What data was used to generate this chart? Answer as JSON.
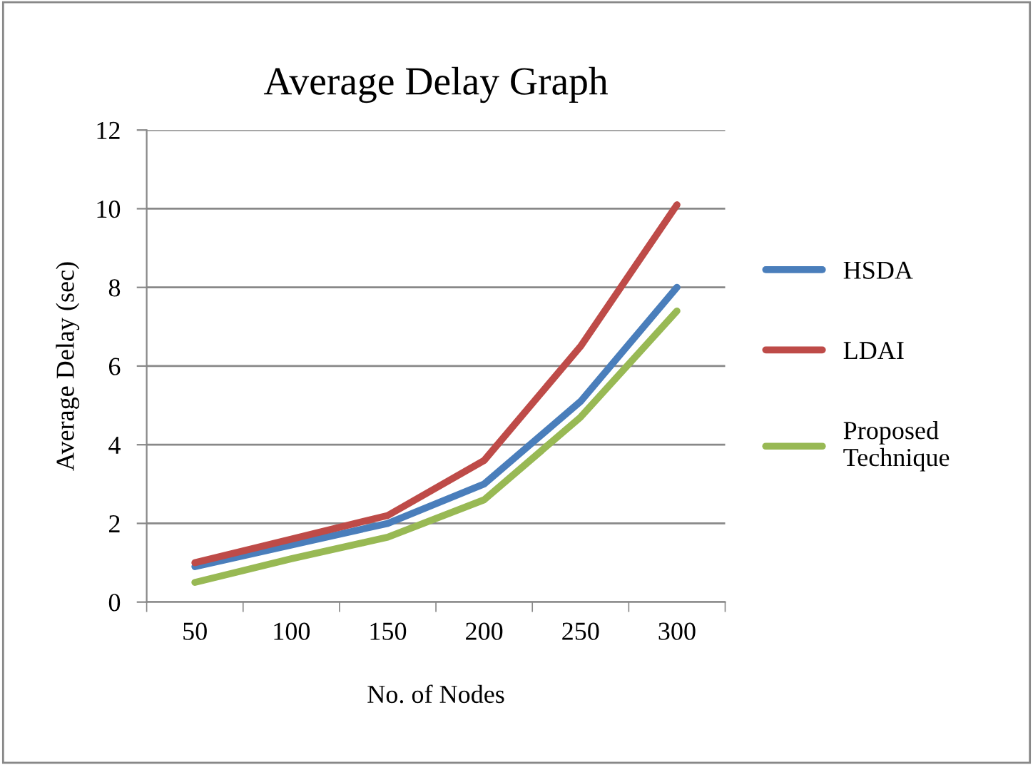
{
  "chart_data": {
    "type": "line",
    "title": "Average Delay Graph",
    "xlabel": "No. of Nodes",
    "ylabel": "Average Delay (sec)",
    "categories": [
      "50",
      "100",
      "150",
      "200",
      "250",
      "300"
    ],
    "series": [
      {
        "name": "HSDA",
        "color": "#4a7ebb",
        "values": [
          0.9,
          1.45,
          2.0,
          3.0,
          5.1,
          8.0
        ]
      },
      {
        "name": "LDAI",
        "color": "#be4b48",
        "values": [
          1.0,
          1.6,
          2.2,
          3.6,
          6.5,
          10.1
        ]
      },
      {
        "name": "Proposed\nTechnique",
        "color": "#98b954",
        "values": [
          0.5,
          1.1,
          1.65,
          2.6,
          4.7,
          7.4
        ]
      }
    ],
    "ylim": [
      0,
      12
    ],
    "yticks": [
      0,
      2,
      4,
      6,
      8,
      10,
      12
    ],
    "grid": "y",
    "legend": "right",
    "marker": "none",
    "line_style": "solid"
  }
}
